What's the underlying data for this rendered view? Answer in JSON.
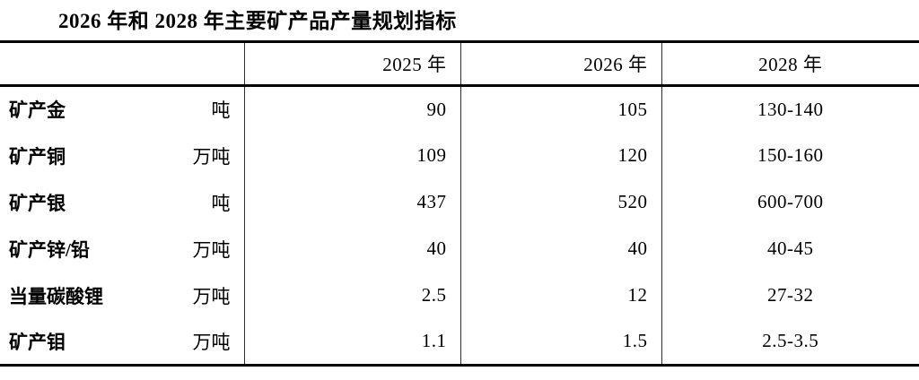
{
  "page": {
    "title": "2026 年和 2028 年主要矿产品产量规划指标"
  },
  "table": {
    "columns": {
      "item": "",
      "y2025": "2025 年",
      "y2026": "2026 年",
      "y2028": "2028 年"
    },
    "rows": [
      {
        "item": "矿产金",
        "unit": "吨",
        "y2025": "90",
        "y2026": "105",
        "y2028": "130-140"
      },
      {
        "item": "矿产铜",
        "unit": "万吨",
        "y2025": "109",
        "y2026": "120",
        "y2028": "150-160"
      },
      {
        "item": "矿产银",
        "unit": "吨",
        "y2025": "437",
        "y2026": "520",
        "y2028": "600-700"
      },
      {
        "item": "矿产锌/铅",
        "unit": "万吨",
        "y2025": "40",
        "y2026": "40",
        "y2028": "40-45"
      },
      {
        "item": "当量碳酸锂",
        "unit": "万吨",
        "y2025": "2.5",
        "y2026": "12",
        "y2028": "27-32"
      },
      {
        "item": "矿产钼",
        "unit": "万吨",
        "y2025": "1.1",
        "y2026": "1.5",
        "y2028": "2.5-3.5"
      }
    ]
  }
}
